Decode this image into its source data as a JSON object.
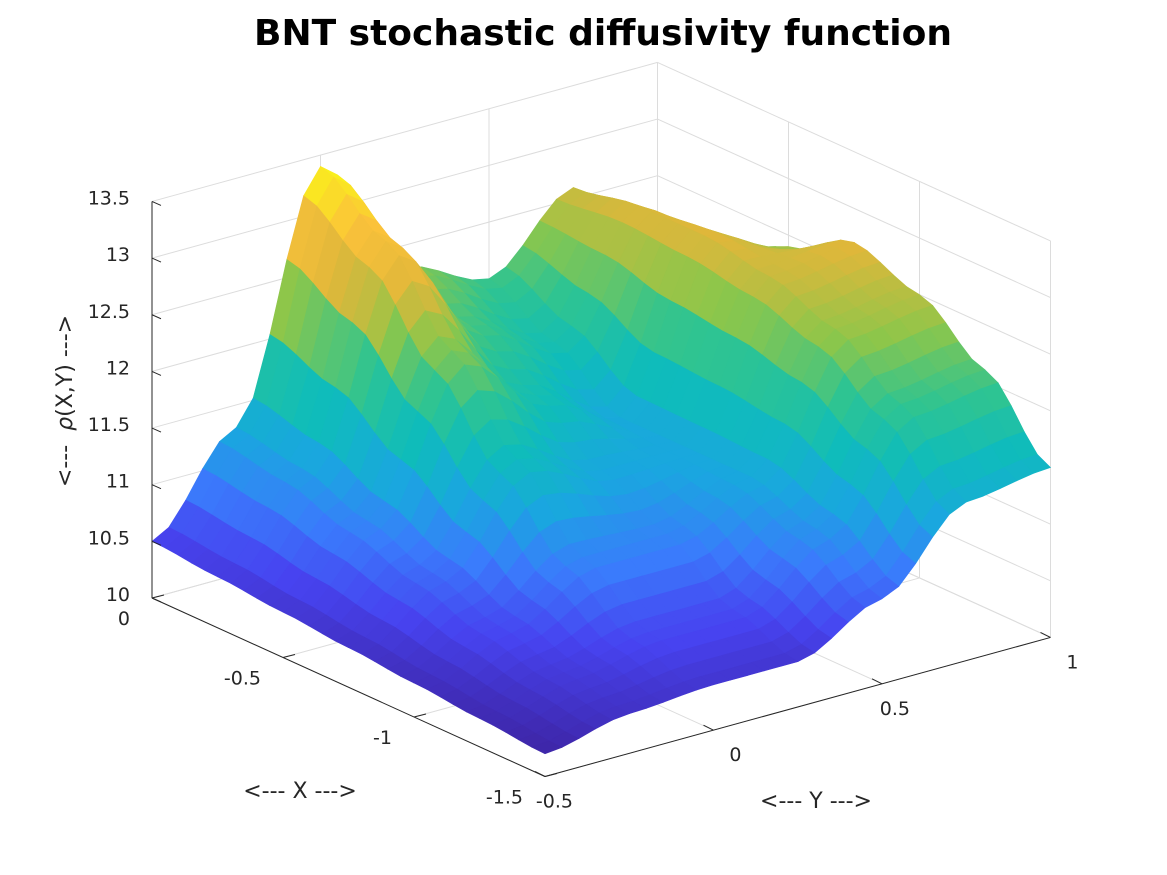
{
  "chart_data": {
    "type": "surface",
    "title": "BNT stochastic diffusivity function",
    "xlabel": "<--- X --->",
    "ylabel": "<--- Y --->",
    "zlabel_prefix": "<---  ",
    "zlabel_symbol": "ρ",
    "zlabel_suffix": "(X,Y) --->",
    "xlim": [
      -1.5,
      0
    ],
    "ylim": [
      -0.5,
      1
    ],
    "zlim": [
      10,
      13.5
    ],
    "x_ticks": [
      {
        "value": 0,
        "label": "0"
      },
      {
        "value": -0.5,
        "label": "-0.5"
      },
      {
        "value": -1,
        "label": "-1"
      },
      {
        "value": -1.5,
        "label": "-1.5"
      }
    ],
    "y_ticks": [
      {
        "value": -0.5,
        "label": "-0.5"
      },
      {
        "value": 0,
        "label": "0"
      },
      {
        "value": 0.5,
        "label": "0.5"
      },
      {
        "value": 1,
        "label": "1"
      }
    ],
    "z_ticks": [
      {
        "value": 10,
        "label": "10"
      },
      {
        "value": 10.5,
        "label": "10.5"
      },
      {
        "value": 11,
        "label": "11"
      },
      {
        "value": 11.5,
        "label": "11.5"
      },
      {
        "value": 12,
        "label": "12"
      },
      {
        "value": 12.5,
        "label": "12.5"
      },
      {
        "value": 13,
        "label": "13"
      },
      {
        "value": 13.5,
        "label": "13.5"
      }
    ],
    "grid": true,
    "colormap": [
      "#3e26a8",
      "#4743f0",
      "#3a7bfc",
      "#1aa6e0",
      "#0fbcbb",
      "#2fc491",
      "#8dc64a",
      "#e0b73a",
      "#fbc23a",
      "#f9fb15"
    ],
    "surface_samples": {
      "x": [
        0,
        -0.25,
        -0.5,
        -0.75,
        -1,
        -1.25,
        -1.5
      ],
      "y": [
        -0.5,
        -0.25,
        0,
        0.25,
        0.5,
        0.75,
        1
      ],
      "z": [
        [
          10.5,
          11.3,
          13.4,
          12.3,
          12.0,
          12.6,
          11.1
        ],
        [
          10.45,
          11.2,
          13.0,
          12.05,
          11.7,
          12.7,
          11.9
        ],
        [
          10.4,
          11.0,
          12.3,
          11.7,
          11.3,
          12.7,
          12.4
        ],
        [
          10.35,
          10.8,
          11.6,
          11.3,
          11.3,
          12.6,
          12.7
        ],
        [
          10.3,
          10.6,
          11.0,
          11.0,
          11.3,
          12.4,
          12.5
        ],
        [
          10.25,
          10.45,
          10.6,
          10.6,
          11.1,
          12.0,
          12.1
        ],
        [
          10.2,
          10.35,
          10.4,
          10.4,
          10.75,
          11.4,
          11.5
        ]
      ]
    }
  }
}
